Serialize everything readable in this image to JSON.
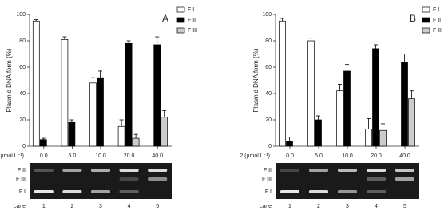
{
  "chart_data": [
    {
      "type": "bar",
      "panel_label": "A",
      "ylabel": "Plasmid DNA form (%)",
      "xlabel": "μmol L⁻¹)",
      "categories": [
        "0.0",
        "5.0",
        "10.0",
        "20.0",
        "40.0"
      ],
      "series": [
        {
          "name": "F I",
          "color": "#ffffff",
          "values": [
            95,
            81,
            48,
            15,
            null
          ],
          "errors": [
            1,
            2,
            4,
            5,
            null
          ]
        },
        {
          "name": "F II",
          "color": "#000000",
          "values": [
            5,
            18,
            52,
            78,
            77
          ],
          "errors": [
            1,
            2,
            5,
            2,
            6
          ]
        },
        {
          "name": "F III",
          "color": "#cccccc",
          "values": [
            null,
            null,
            null,
            6,
            22
          ],
          "errors": [
            null,
            null,
            null,
            3,
            5
          ]
        }
      ],
      "ylim": [
        0,
        100
      ],
      "yticks": [
        0,
        20,
        40,
        60,
        80,
        100
      ]
    },
    {
      "type": "bar",
      "panel_label": "B",
      "ylabel": "Plasmid DNA form (%)",
      "xlabel": "2 (μmol L⁻¹)",
      "categories": [
        "0.0",
        "5.0",
        "10.0",
        "20.0",
        "40.0"
      ],
      "series": [
        {
          "name": "F I",
          "color": "#ffffff",
          "values": [
            95,
            80,
            42,
            13,
            null
          ],
          "errors": [
            2,
            2,
            5,
            8,
            null
          ]
        },
        {
          "name": "F II",
          "color": "#000000",
          "values": [
            4,
            20,
            57,
            74,
            64
          ],
          "errors": [
            3,
            3,
            5,
            3,
            6
          ]
        },
        {
          "name": "F III",
          "color": "#cccccc",
          "values": [
            null,
            null,
            null,
            12,
            36
          ],
          "errors": [
            null,
            null,
            null,
            5,
            6
          ]
        }
      ],
      "ylim": [
        0,
        100
      ],
      "yticks": [
        0,
        20,
        40,
        60,
        80,
        100
      ]
    }
  ],
  "gels": [
    {
      "band_labels": [
        "F II",
        "F III",
        "F I"
      ],
      "lane_label": "Lane",
      "lanes": [
        "1",
        "2",
        "3",
        "4",
        "5"
      ]
    },
    {
      "band_labels": [
        "F II",
        "F III",
        "F I"
      ],
      "lane_label": "Lane",
      "lanes": [
        "1",
        "2",
        "3",
        "4",
        "5"
      ]
    }
  ]
}
